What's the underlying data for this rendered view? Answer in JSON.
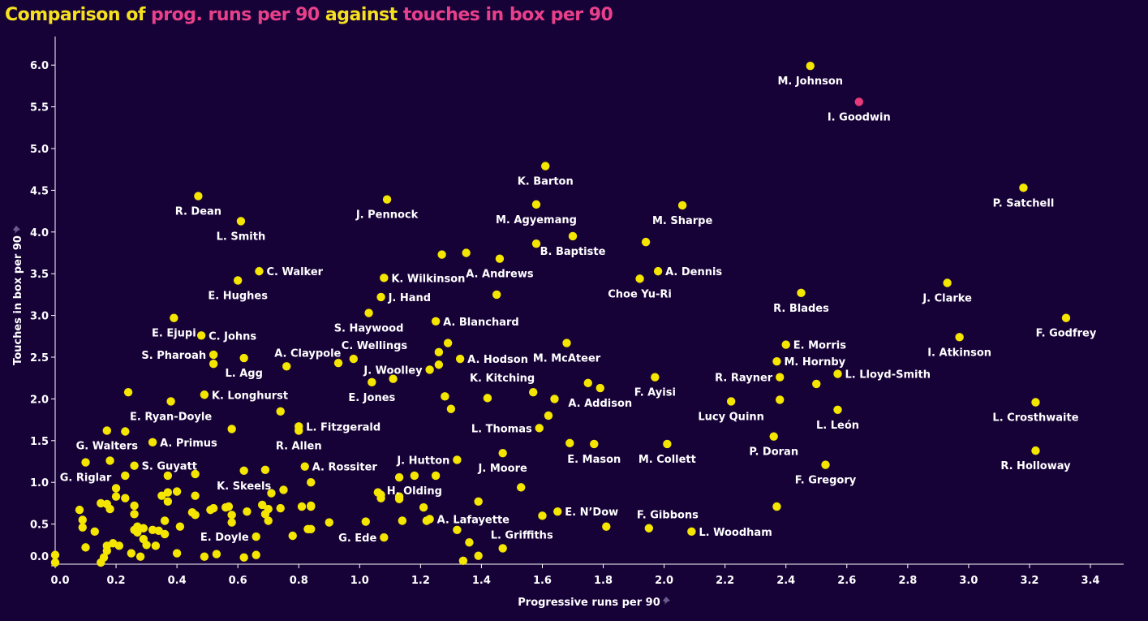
{
  "title": {
    "parts": [
      {
        "text": "Comparison of ",
        "style": "normal"
      },
      {
        "text": "prog. runs per 90",
        "style": "highlight"
      },
      {
        "text": " against ",
        "style": "normal"
      },
      {
        "text": "touches in box per 90",
        "style": "highlight"
      }
    ]
  },
  "colors": {
    "background": "#170238",
    "point": "#f5e600",
    "highlight_point": "#e8397a",
    "title_text": "#f5e11d",
    "title_highlight": "#e8408a",
    "axis": "#ffffff",
    "label": "#ffffff",
    "pin_icon": "#6b5a8a"
  },
  "chart_data": {
    "type": "scatter",
    "title": "Comparison of prog. runs per 90 against touches in box per 90",
    "xlabel": "Progressive runs per 90",
    "ylabel": "Touches in box per 90",
    "xlim": [
      -0.005,
      3.51
    ],
    "ylim": [
      -0.01,
      6.34
    ],
    "xticks": [
      0.0,
      0.2,
      0.4,
      0.6,
      0.8,
      1.0,
      1.2,
      1.4,
      1.6,
      1.8,
      2.0,
      2.2,
      2.4,
      2.6,
      2.8,
      3.0,
      3.2,
      3.4
    ],
    "xtick_labels": [
      "0.0",
      "0.2",
      "0.4",
      "0.6",
      "0.8",
      "1.0",
      "1.2",
      "1.4",
      "1.6",
      "1.8",
      "2.0",
      "2.2",
      "2.4",
      "2.6",
      "2.8",
      "3.0",
      "3.2",
      "3.4"
    ],
    "yticks": [
      0.0,
      0.5,
      1.0,
      1.5,
      2.0,
      2.5,
      3.0,
      3.5,
      4.0,
      4.5,
      5.0,
      5.5,
      6.0
    ],
    "ytick_labels": [
      "0.0",
      "0.5",
      "1.0",
      "1.5",
      "2.0",
      "2.5",
      "3.0",
      "3.5",
      "4.0",
      "4.5",
      "5.0",
      "5.5",
      "6.0"
    ],
    "grid": false,
    "legend": "none",
    "points": [
      {
        "name": "M. Johnson",
        "x": 2.48,
        "y": 5.99,
        "label_pos": "below"
      },
      {
        "name": "I. Goodwin",
        "x": 2.64,
        "y": 5.56,
        "label_pos": "below",
        "highlight": true
      },
      {
        "name": "K. Barton",
        "x": 1.61,
        "y": 4.79,
        "label_pos": "below"
      },
      {
        "name": "P. Satchell",
        "x": 3.18,
        "y": 4.53,
        "label_pos": "below"
      },
      {
        "name": "R. Dean",
        "x": 0.47,
        "y": 4.43,
        "label_pos": "below"
      },
      {
        "name": "J. Pennock",
        "x": 1.09,
        "y": 4.39,
        "label_pos": "below"
      },
      {
        "name": "M. Agyemang",
        "x": 1.58,
        "y": 4.33,
        "label_pos": "below"
      },
      {
        "name": "M. Sharpe",
        "x": 2.06,
        "y": 4.32,
        "label_pos": "below"
      },
      {
        "name": "L. Smith",
        "x": 0.61,
        "y": 4.13,
        "label_pos": "below"
      },
      {
        "name": "B. Baptiste",
        "x": 1.7,
        "y": 3.95,
        "label_pos": "below"
      },
      {
        "name": "A. Andrews",
        "x": 1.46,
        "y": 3.68,
        "label_pos": "below"
      },
      {
        "name": "C. Walker",
        "x": 0.67,
        "y": 3.53,
        "label_pos": "right"
      },
      {
        "name": "A. Dennis",
        "x": 1.98,
        "y": 3.53,
        "label_pos": "right"
      },
      {
        "name": "Choe Yu-Ri",
        "x": 1.92,
        "y": 3.44,
        "label_pos": "below"
      },
      {
        "name": "K. Wilkinson",
        "x": 1.08,
        "y": 3.45,
        "label_pos": "right"
      },
      {
        "name": "E. Hughes",
        "x": 0.6,
        "y": 3.42,
        "label_pos": "below"
      },
      {
        "name": "J. Clarke",
        "x": 2.93,
        "y": 3.39,
        "label_pos": "below"
      },
      {
        "name": "R. Blades",
        "x": 2.45,
        "y": 3.27,
        "label_pos": "below"
      },
      {
        "name": "J. Hand",
        "x": 1.07,
        "y": 3.22,
        "label_pos": "right"
      },
      {
        "name": "S. Haywood",
        "x": 1.03,
        "y": 3.03,
        "label_pos": "below"
      },
      {
        "name": "E. Ejupi",
        "x": 0.39,
        "y": 2.97,
        "label_pos": "below"
      },
      {
        "name": "F. Godfrey",
        "x": 3.32,
        "y": 2.97,
        "label_pos": "below"
      },
      {
        "name": "A. Blanchard",
        "x": 1.25,
        "y": 2.93,
        "label_pos": "right"
      },
      {
        "name": "C. Johns",
        "x": 0.48,
        "y": 2.76,
        "label_pos": "right"
      },
      {
        "name": "I. Atkinson",
        "x": 2.97,
        "y": 2.74,
        "label_pos": "below"
      },
      {
        "name": "M. McAteer",
        "x": 1.68,
        "y": 2.67,
        "label_pos": "below"
      },
      {
        "name": "E. Morris",
        "x": 2.4,
        "y": 2.65,
        "label_pos": "right"
      },
      {
        "name": "S. Pharoah",
        "x": 0.52,
        "y": 2.53,
        "label_pos": "left"
      },
      {
        "name": "L. Agg",
        "x": 0.62,
        "y": 2.49,
        "label_pos": "below"
      },
      {
        "name": "C. Wellings",
        "x": 0.98,
        "y": 2.48,
        "label_pos": "above-right"
      },
      {
        "name": "A. Hodson",
        "x": 1.33,
        "y": 2.48,
        "label_pos": "right"
      },
      {
        "name": "M. Hornby",
        "x": 2.37,
        "y": 2.45,
        "label_pos": "right"
      },
      {
        "name": "A. Claypole",
        "x": 0.76,
        "y": 2.39,
        "label_pos": "above-right"
      },
      {
        "name": "J. Woolley",
        "x": 1.23,
        "y": 2.35,
        "label_pos": "left"
      },
      {
        "name": "L. Lloyd-Smith",
        "x": 2.57,
        "y": 2.3,
        "label_pos": "right"
      },
      {
        "name": "R. Rayner",
        "x": 2.38,
        "y": 2.26,
        "label_pos": "left"
      },
      {
        "name": "F. Ayisi",
        "x": 1.97,
        "y": 2.26,
        "label_pos": "below"
      },
      {
        "name": "E. Jones",
        "x": 1.04,
        "y": 2.2,
        "label_pos": "below"
      },
      {
        "name": "A. Addison",
        "x": 1.79,
        "y": 2.13,
        "label_pos": "below"
      },
      {
        "name": "K. Kitching",
        "x": 1.57,
        "y": 2.08,
        "label_pos": "above-left"
      },
      {
        "name": "K. Longhurst",
        "x": 0.49,
        "y": 2.05,
        "label_pos": "right"
      },
      {
        "name": "E. Ryan-Doyle",
        "x": 0.38,
        "y": 1.97,
        "label_pos": "below"
      },
      {
        "name": "Lucy Quinn",
        "x": 2.22,
        "y": 1.97,
        "label_pos": "below"
      },
      {
        "name": "L. Crosthwaite",
        "x": 3.22,
        "y": 1.96,
        "label_pos": "below"
      },
      {
        "name": "L. León",
        "x": 2.57,
        "y": 1.87,
        "label_pos": "below"
      },
      {
        "name": "L. Fitzgerald",
        "x": 0.8,
        "y": 1.67,
        "label_pos": "right"
      },
      {
        "name": "L. Thomas",
        "x": 1.59,
        "y": 1.65,
        "label_pos": "left"
      },
      {
        "name": "G. Walters",
        "x": 0.17,
        "y": 1.62,
        "label_pos": "below"
      },
      {
        "name": "R. Allen",
        "x": 0.8,
        "y": 1.62,
        "label_pos": "below"
      },
      {
        "name": "P. Doran",
        "x": 2.36,
        "y": 1.55,
        "label_pos": "below"
      },
      {
        "name": "A. Primus",
        "x": 0.32,
        "y": 1.48,
        "label_pos": "right"
      },
      {
        "name": "E. Mason",
        "x": 1.77,
        "y": 1.46,
        "label_pos": "below"
      },
      {
        "name": "M. Collett",
        "x": 2.01,
        "y": 1.46,
        "label_pos": "below"
      },
      {
        "name": "R. Holloway",
        "x": 3.22,
        "y": 1.38,
        "label_pos": "below"
      },
      {
        "name": "J. Moore",
        "x": 1.47,
        "y": 1.35,
        "label_pos": "below"
      },
      {
        "name": "J. Hutton",
        "x": 1.32,
        "y": 1.27,
        "label_pos": "left"
      },
      {
        "name": "G. Riglar",
        "x": 0.1,
        "y": 1.24,
        "label_pos": "below"
      },
      {
        "name": "F. Gregory",
        "x": 2.53,
        "y": 1.21,
        "label_pos": "below"
      },
      {
        "name": "S. Guyatt",
        "x": 0.26,
        "y": 1.2,
        "label_pos": "right"
      },
      {
        "name": "A. Rossiter",
        "x": 0.82,
        "y": 1.19,
        "label_pos": "right"
      },
      {
        "name": "K. Skeels",
        "x": 0.62,
        "y": 1.14,
        "label_pos": "below"
      },
      {
        "name": "H. Olding",
        "x": 1.18,
        "y": 1.08,
        "label_pos": "below"
      },
      {
        "name": "E. N’Dow",
        "x": 1.65,
        "y": 0.65,
        "label_pos": "right"
      },
      {
        "name": "A. Lafayette",
        "x": 1.23,
        "y": 0.56,
        "label_pos": "right"
      },
      {
        "name": "F. Gibbons",
        "x": 1.95,
        "y": 0.45,
        "label_pos": "above-right"
      },
      {
        "name": "L. Woodham",
        "x": 2.09,
        "y": 0.41,
        "label_pos": "right"
      },
      {
        "name": "E. Doyle",
        "x": 0.66,
        "y": 0.35,
        "label_pos": "left"
      },
      {
        "name": "G. Ede",
        "x": 1.08,
        "y": 0.34,
        "label_pos": "left"
      },
      {
        "name": "L. Griffiths",
        "x": 1.47,
        "y": 0.21,
        "label_pos": "above-right"
      },
      {
        "name": "",
        "x": 0.24,
        "y": 2.08
      },
      {
        "name": "",
        "x": 0.74,
        "y": 1.85
      },
      {
        "name": "",
        "x": 0.23,
        "y": 1.61
      },
      {
        "name": "",
        "x": 0.58,
        "y": 1.64
      },
      {
        "name": "",
        "x": 0.18,
        "y": 1.26
      },
      {
        "name": "",
        "x": 0.23,
        "y": 1.08
      },
      {
        "name": "",
        "x": 0.37,
        "y": 1.08
      },
      {
        "name": "",
        "x": 0.46,
        "y": 1.1
      },
      {
        "name": "",
        "x": 0.69,
        "y": 1.15
      },
      {
        "name": "",
        "x": 0.84,
        "y": 1.0
      },
      {
        "name": "",
        "x": 0.2,
        "y": 0.93
      },
      {
        "name": "",
        "x": 0.2,
        "y": 0.83
      },
      {
        "name": "",
        "x": 0.23,
        "y": 0.81
      },
      {
        "name": "",
        "x": 0.35,
        "y": 0.84
      },
      {
        "name": "",
        "x": 0.37,
        "y": 0.88
      },
      {
        "name": "",
        "x": 0.4,
        "y": 0.89
      },
      {
        "name": "",
        "x": 0.37,
        "y": 0.77
      },
      {
        "name": "",
        "x": 0.46,
        "y": 0.84
      },
      {
        "name": "",
        "x": 0.75,
        "y": 0.91
      },
      {
        "name": "",
        "x": 0.71,
        "y": 0.87
      },
      {
        "name": "",
        "x": 0.15,
        "y": 0.75
      },
      {
        "name": "",
        "x": 0.17,
        "y": 0.74
      },
      {
        "name": "",
        "x": 0.18,
        "y": 0.68
      },
      {
        "name": "",
        "x": 0.08,
        "y": 0.67
      },
      {
        "name": "",
        "x": 0.26,
        "y": 0.72
      },
      {
        "name": "",
        "x": 0.26,
        "y": 0.62
      },
      {
        "name": "",
        "x": 0.09,
        "y": 0.55
      },
      {
        "name": "",
        "x": 0.09,
        "y": 0.46
      },
      {
        "name": "",
        "x": 0.13,
        "y": 0.41
      },
      {
        "name": "",
        "x": 0.36,
        "y": 0.54
      },
      {
        "name": "",
        "x": 0.41,
        "y": 0.47
      },
      {
        "name": "",
        "x": 0.45,
        "y": 0.64
      },
      {
        "name": "",
        "x": 0.46,
        "y": 0.61
      },
      {
        "name": "",
        "x": 0.51,
        "y": 0.67
      },
      {
        "name": "",
        "x": 0.52,
        "y": 0.69
      },
      {
        "name": "",
        "x": 0.56,
        "y": 0.7
      },
      {
        "name": "",
        "x": 0.57,
        "y": 0.71
      },
      {
        "name": "",
        "x": 0.58,
        "y": 0.61
      },
      {
        "name": "",
        "x": 0.58,
        "y": 0.52
      },
      {
        "name": "",
        "x": 0.63,
        "y": 0.65
      },
      {
        "name": "",
        "x": 0.68,
        "y": 0.73
      },
      {
        "name": "",
        "x": 0.7,
        "y": 0.68
      },
      {
        "name": "",
        "x": 0.69,
        "y": 0.62
      },
      {
        "name": "",
        "x": 0.7,
        "y": 0.54
      },
      {
        "name": "",
        "x": 0.74,
        "y": 0.69
      },
      {
        "name": "",
        "x": 0.81,
        "y": 0.71
      },
      {
        "name": "",
        "x": 0.84,
        "y": 0.71
      },
      {
        "name": "",
        "x": 0.83,
        "y": 0.44
      },
      {
        "name": "",
        "x": 0.78,
        "y": 0.36
      },
      {
        "name": "",
        "x": 0.26,
        "y": 0.43
      },
      {
        "name": "",
        "x": 0.27,
        "y": 0.47
      },
      {
        "name": "",
        "x": 0.29,
        "y": 0.45
      },
      {
        "name": "",
        "x": 0.27,
        "y": 0.4
      },
      {
        "name": "",
        "x": 0.32,
        "y": 0.43
      },
      {
        "name": "",
        "x": 0.34,
        "y": 0.42
      },
      {
        "name": "",
        "x": 0.36,
        "y": 0.38
      },
      {
        "name": "",
        "x": 0.29,
        "y": 0.32
      },
      {
        "name": "",
        "x": 0.3,
        "y": 0.25
      },
      {
        "name": "",
        "x": 0.33,
        "y": 0.24
      },
      {
        "name": "",
        "x": 0.1,
        "y": 0.22
      },
      {
        "name": "",
        "x": 0.17,
        "y": 0.24
      },
      {
        "name": "",
        "x": 0.19,
        "y": 0.27
      },
      {
        "name": "",
        "x": 0.21,
        "y": 0.24
      },
      {
        "name": "",
        "x": 0.17,
        "y": 0.18
      },
      {
        "name": "",
        "x": 0.16,
        "y": 0.1
      },
      {
        "name": "",
        "x": 0.15,
        "y": 0.04
      },
      {
        "name": "",
        "x": 0.25,
        "y": 0.15
      },
      {
        "name": "",
        "x": 0.28,
        "y": 0.11
      },
      {
        "name": "",
        "x": 0.4,
        "y": 0.15
      },
      {
        "name": "",
        "x": 0.49,
        "y": 0.11
      },
      {
        "name": "",
        "x": 0.53,
        "y": 0.14
      },
      {
        "name": "",
        "x": 0.62,
        "y": 0.1
      },
      {
        "name": "",
        "x": 0.66,
        "y": 0.13
      },
      {
        "name": "",
        "x": 0.0,
        "y": 0.13
      },
      {
        "name": "",
        "x": 0.0,
        "y": 0.04
      },
      {
        "name": "",
        "x": 0.84,
        "y": 0.72
      },
      {
        "name": "",
        "x": 0.84,
        "y": 0.44
      },
      {
        "name": "",
        "x": 0.9,
        "y": 0.52
      },
      {
        "name": "",
        "x": 1.02,
        "y": 0.53
      },
      {
        "name": "",
        "x": 1.06,
        "y": 0.88
      },
      {
        "name": "",
        "x": 1.07,
        "y": 0.85
      },
      {
        "name": "",
        "x": 1.07,
        "y": 0.81
      },
      {
        "name": "",
        "x": 1.13,
        "y": 1.06
      },
      {
        "name": "",
        "x": 1.25,
        "y": 1.08
      },
      {
        "name": "",
        "x": 1.13,
        "y": 0.83
      },
      {
        "name": "",
        "x": 1.13,
        "y": 0.8
      },
      {
        "name": "",
        "x": 1.14,
        "y": 0.54
      },
      {
        "name": "",
        "x": 1.21,
        "y": 0.7
      },
      {
        "name": "",
        "x": 1.22,
        "y": 0.54
      },
      {
        "name": "",
        "x": 1.32,
        "y": 0.43
      },
      {
        "name": "",
        "x": 1.34,
        "y": 0.06
      },
      {
        "name": "",
        "x": 1.36,
        "y": 0.28
      },
      {
        "name": "",
        "x": 1.39,
        "y": 0.77
      },
      {
        "name": "",
        "x": 1.39,
        "y": 0.12
      },
      {
        "name": "",
        "x": 1.53,
        "y": 0.94
      },
      {
        "name": "",
        "x": 1.6,
        "y": 0.6
      },
      {
        "name": "",
        "x": 1.81,
        "y": 0.47
      },
      {
        "name": "",
        "x": 2.37,
        "y": 0.71
      },
      {
        "name": "",
        "x": 1.69,
        "y": 1.47
      },
      {
        "name": "",
        "x": 0.93,
        "y": 2.43
      },
      {
        "name": "",
        "x": 1.11,
        "y": 2.24
      },
      {
        "name": "",
        "x": 1.28,
        "y": 2.03
      },
      {
        "name": "",
        "x": 1.42,
        "y": 2.01
      },
      {
        "name": "",
        "x": 1.64,
        "y": 2.0
      },
      {
        "name": "",
        "x": 1.75,
        "y": 2.19
      },
      {
        "name": "",
        "x": 1.62,
        "y": 1.8
      },
      {
        "name": "",
        "x": 1.3,
        "y": 1.88
      },
      {
        "name": "",
        "x": 1.29,
        "y": 2.67
      },
      {
        "name": "",
        "x": 1.26,
        "y": 2.56
      },
      {
        "name": "",
        "x": 1.26,
        "y": 2.41
      },
      {
        "name": "",
        "x": 1.27,
        "y": 3.73
      },
      {
        "name": "",
        "x": 1.35,
        "y": 3.75
      },
      {
        "name": "",
        "x": 1.45,
        "y": 3.25
      },
      {
        "name": "",
        "x": 1.58,
        "y": 3.86
      },
      {
        "name": "",
        "x": 1.94,
        "y": 3.88
      },
      {
        "name": "",
        "x": 2.5,
        "y": 2.18
      },
      {
        "name": "",
        "x": 2.38,
        "y": 1.99
      },
      {
        "name": "",
        "x": 0.52,
        "y": 2.42
      }
    ]
  }
}
